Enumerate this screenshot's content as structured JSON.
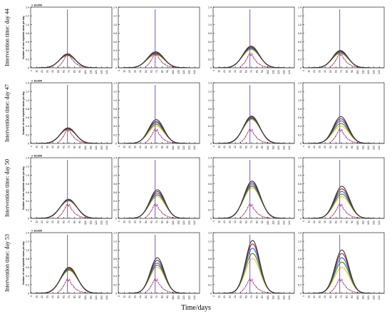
{
  "figure": {
    "xlabel": "Time/days",
    "ylabel": "Number of new reported cases per day",
    "scale_label": "× 10,000",
    "row_labels": [
      "Intervention time: day 44",
      "Intervention time: day 47",
      "Intervention time: day 50",
      "Intervention time: day 53"
    ]
  },
  "colors": {
    "observed": "#8b1a5a",
    "vline": "#7a3fc0",
    "series": [
      "#e0c840",
      "#4f7a1a",
      "#2a62c8",
      "#8b2a2a",
      "#333333"
    ]
  },
  "chart_data": {
    "type": "line",
    "layout": "4x4 grid of small multiples",
    "ylim": [
      0,
      1.4
    ],
    "yticks": [
      0,
      0.2,
      0.4,
      0.6,
      0.8,
      1.0,
      1.2,
      1.4
    ],
    "xticks": [
      1,
      11,
      21,
      31,
      41,
      51,
      61,
      71,
      81,
      91,
      101,
      111,
      121,
      131,
      141
    ],
    "xlim": [
      0,
      150
    ],
    "vline_x": 68,
    "vline_top": 1.35,
    "observed": {
      "x": [
        50,
        54,
        57,
        60,
        62,
        64,
        66,
        68,
        70,
        72,
        74,
        76,
        78,
        80,
        83,
        86,
        90,
        95,
        100,
        105
      ],
      "y": [
        0.02,
        0.06,
        0.1,
        0.16,
        0.2,
        0.25,
        0.3,
        0.34,
        0.28,
        0.32,
        0.24,
        0.2,
        0.18,
        0.14,
        0.1,
        0.08,
        0.05,
        0.03,
        0.02,
        0.01
      ]
    },
    "panels": [
      [
        {
          "peaks": [
            0.28,
            0.29,
            0.3,
            0.31,
            0.32
          ],
          "width": 14,
          "center": 68
        },
        {
          "peaks": [
            0.3,
            0.32,
            0.34,
            0.35,
            0.37
          ],
          "width": 15,
          "center": 69
        },
        {
          "peaks": [
            0.42,
            0.44,
            0.46,
            0.48,
            0.5
          ],
          "width": 15,
          "center": 70
        },
        {
          "peaks": [
            0.33,
            0.35,
            0.37,
            0.38,
            0.4
          ],
          "width": 14,
          "center": 69
        }
      ],
      [
        {
          "peaks": [
            0.32,
            0.33,
            0.34,
            0.35,
            0.36
          ],
          "width": 14,
          "center": 69
        },
        {
          "peaks": [
            0.4,
            0.44,
            0.48,
            0.51,
            0.55
          ],
          "width": 14,
          "center": 70
        },
        {
          "peaks": [
            0.55,
            0.57,
            0.59,
            0.61,
            0.63
          ],
          "width": 15,
          "center": 71
        },
        {
          "peaks": [
            0.4,
            0.46,
            0.52,
            0.57,
            0.62
          ],
          "width": 14,
          "center": 70
        }
      ],
      [
        {
          "peaks": [
            0.4,
            0.41,
            0.42,
            0.43,
            0.44
          ],
          "width": 15,
          "center": 70
        },
        {
          "peaks": [
            0.5,
            0.54,
            0.58,
            0.62,
            0.66
          ],
          "width": 14,
          "center": 72
        },
        {
          "peaks": [
            0.7,
            0.74,
            0.78,
            0.82,
            0.86
          ],
          "width": 15,
          "center": 72
        },
        {
          "peaks": [
            0.5,
            0.56,
            0.62,
            0.68,
            0.74
          ],
          "width": 14,
          "center": 72
        }
      ],
      [
        {
          "peaks": [
            0.52,
            0.54,
            0.56,
            0.58,
            0.6
          ],
          "width": 15,
          "center": 71
        },
        {
          "peaks": [
            0.6,
            0.65,
            0.7,
            0.76,
            0.82
          ],
          "width": 13,
          "center": 72
        },
        {
          "peaks": [
            0.8,
            0.92,
            1.04,
            1.14,
            1.22
          ],
          "width": 13,
          "center": 73
        },
        {
          "peaks": [
            0.6,
            0.72,
            0.82,
            0.92,
            1.0
          ],
          "width": 13,
          "center": 72
        }
      ]
    ]
  }
}
